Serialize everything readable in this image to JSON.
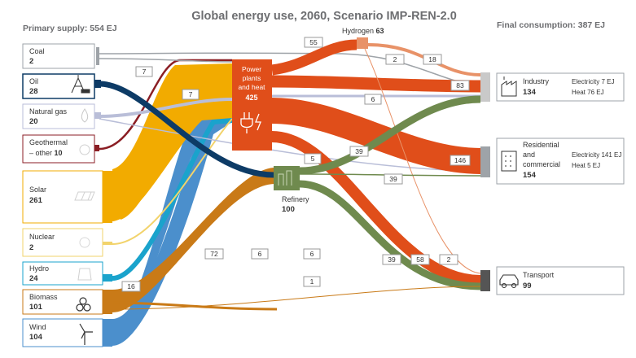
{
  "title": "Global energy use, 2060, Scenario IMP-REN-2.0",
  "primary_supply": "Primary supply: 554 EJ",
  "final_consumption": "Final consumption: 387 EJ",
  "sources": [
    {
      "name": "Coal",
      "value": "2",
      "color": "#9ea3a8"
    },
    {
      "name": "Oil",
      "value": "28",
      "color": "#0d3b66"
    },
    {
      "name": "Natural gas",
      "value": "20",
      "color": "#b9bed8"
    },
    {
      "name": "Geothermal\n– other 10",
      "value": "",
      "color": "#8b1e24"
    },
    {
      "name": "Solar",
      "value": "261",
      "color": "#f2ab00"
    },
    {
      "name": "Nuclear",
      "value": "2",
      "color": "#f2d36b"
    },
    {
      "name": "Hydro",
      "value": "24",
      "color": "#1aa3cc"
    },
    {
      "name": "Biomass",
      "value": "101",
      "color": "#c97a17"
    },
    {
      "name": "Wind",
      "value": "104",
      "color": "#4b8fcc"
    }
  ],
  "power": {
    "label": "Power\nplants\nand heat",
    "value": "425",
    "color": "#e04e1a"
  },
  "hydrogen": {
    "label": "Hydrogen",
    "value": "63",
    "color": "#e89268"
  },
  "refinery": {
    "label": "Refinery",
    "value": "100",
    "color": "#6f8a4e"
  },
  "consumers": [
    {
      "name": "Industry",
      "value": "134",
      "detail": [
        "Electricity 7 EJ",
        "Heat 76 EJ"
      ],
      "icon": "factory-icon"
    },
    {
      "name": "Residential\nand\ncommercial",
      "value": "154",
      "detail": [
        "Electricity 141 EJ",
        "Heat 5 EJ"
      ],
      "icon": "building-icon"
    },
    {
      "name": "Transport",
      "value": "99",
      "detail": [],
      "icon": "car-icon"
    }
  ],
  "flow_labels": [
    "7",
    "7",
    "55",
    "2",
    "18",
    "83",
    "6",
    "5",
    "39",
    "146",
    "39",
    "72",
    "6",
    "6",
    "1",
    "16",
    "39",
    "58",
    "2"
  ]
}
